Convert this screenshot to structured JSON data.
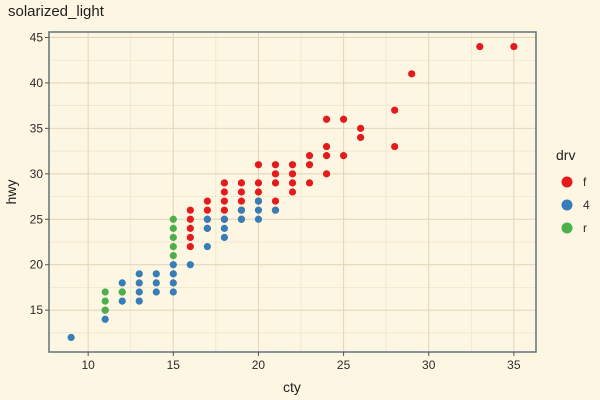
{
  "chart_data": {
    "type": "scatter",
    "title": "solarized_light",
    "xlabel": "cty",
    "ylabel": "hwy",
    "xlim": [
      7.7,
      36.3
    ],
    "ylim": [
      10.4,
      45.6
    ],
    "x_ticks": [
      10,
      15,
      20,
      25,
      30,
      35
    ],
    "y_ticks": [
      15,
      20,
      25,
      30,
      35,
      40,
      45
    ],
    "grid": true,
    "legend": {
      "title": "drv",
      "placement": "right",
      "entries": [
        "f",
        "4",
        "r"
      ]
    },
    "colors": {
      "f": "#e41a1c",
      "4": "#377eb8",
      "r": "#4daf4a"
    },
    "series": [
      {
        "name": "f",
        "points": [
          [
            16,
            22
          ],
          [
            16,
            23
          ],
          [
            16,
            24
          ],
          [
            16,
            25
          ],
          [
            16,
            26
          ],
          [
            17,
            24
          ],
          [
            17,
            25
          ],
          [
            17,
            26
          ],
          [
            17,
            27
          ],
          [
            18,
            25
          ],
          [
            18,
            26
          ],
          [
            18,
            27
          ],
          [
            18,
            28
          ],
          [
            18,
            29
          ],
          [
            19,
            25
          ],
          [
            19,
            26
          ],
          [
            19,
            27
          ],
          [
            19,
            28
          ],
          [
            19,
            29
          ],
          [
            20,
            27
          ],
          [
            20,
            28
          ],
          [
            20,
            29
          ],
          [
            20,
            31
          ],
          [
            21,
            26
          ],
          [
            21,
            27
          ],
          [
            21,
            29
          ],
          [
            21,
            30
          ],
          [
            21,
            31
          ],
          [
            22,
            28
          ],
          [
            22,
            29
          ],
          [
            22,
            30
          ],
          [
            22,
            31
          ],
          [
            23,
            29
          ],
          [
            23,
            31
          ],
          [
            23,
            32
          ],
          [
            24,
            30
          ],
          [
            24,
            32
          ],
          [
            24,
            33
          ],
          [
            24,
            36
          ],
          [
            25,
            32
          ],
          [
            25,
            36
          ],
          [
            26,
            34
          ],
          [
            26,
            35
          ],
          [
            28,
            33
          ],
          [
            28,
            37
          ],
          [
            29,
            41
          ],
          [
            33,
            44
          ],
          [
            35,
            44
          ]
        ]
      },
      {
        "name": "4",
        "points": [
          [
            9,
            12
          ],
          [
            11,
            14
          ],
          [
            11,
            15
          ],
          [
            12,
            16
          ],
          [
            12,
            17
          ],
          [
            12,
            18
          ],
          [
            13,
            16
          ],
          [
            13,
            17
          ],
          [
            13,
            18
          ],
          [
            13,
            19
          ],
          [
            14,
            17
          ],
          [
            14,
            18
          ],
          [
            14,
            19
          ],
          [
            15,
            17
          ],
          [
            15,
            18
          ],
          [
            15,
            19
          ],
          [
            15,
            20
          ],
          [
            16,
            20
          ],
          [
            17,
            22
          ],
          [
            17,
            24
          ],
          [
            17,
            25
          ],
          [
            18,
            23
          ],
          [
            18,
            24
          ],
          [
            18,
            25
          ],
          [
            19,
            25
          ],
          [
            19,
            26
          ],
          [
            20,
            25
          ],
          [
            20,
            26
          ],
          [
            20,
            27
          ],
          [
            21,
            26
          ]
        ]
      },
      {
        "name": "r",
        "points": [
          [
            11,
            15
          ],
          [
            11,
            16
          ],
          [
            11,
            17
          ],
          [
            12,
            17
          ],
          [
            15,
            21
          ],
          [
            15,
            22
          ],
          [
            15,
            23
          ],
          [
            15,
            24
          ],
          [
            15,
            25
          ]
        ]
      }
    ]
  }
}
